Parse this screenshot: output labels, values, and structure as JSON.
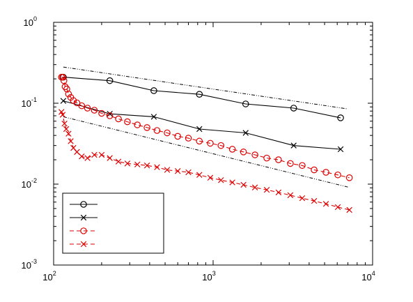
{
  "chart_data": {
    "type": "line",
    "title": "",
    "xlabel": "",
    "ylabel": "",
    "x_scale": "log",
    "y_scale": "log",
    "xlim": [
      100,
      10000
    ],
    "ylim": [
      0.001,
      1
    ],
    "x_ticks": [
      {
        "value": 100,
        "base": "10",
        "exp": "2"
      },
      {
        "value": 1000,
        "base": "10",
        "exp": "3"
      },
      {
        "value": 10000,
        "base": "10",
        "exp": "4"
      }
    ],
    "y_ticks": [
      {
        "value": 0.001,
        "base": "10",
        "exp": "-3"
      },
      {
        "value": 0.01,
        "base": "10",
        "exp": "-2"
      },
      {
        "value": 0.1,
        "base": "10",
        "exp": "-1"
      },
      {
        "value": 1,
        "base": "10",
        "exp": "0"
      }
    ],
    "grid": false,
    "legend_position": "bottom-left",
    "series": [
      {
        "color": "#000000",
        "marker": "circle",
        "line_style": "solid",
        "x": [
          115,
          225,
          425,
          820,
          1600,
          3200,
          6300
        ],
        "y": [
          0.21,
          0.19,
          0.143,
          0.129,
          0.098,
          0.087,
          0.066
        ]
      },
      {
        "color": "#000000",
        "marker": "x",
        "line_style": "solid",
        "x": [
          115,
          225,
          425,
          820,
          1600,
          3200,
          6300
        ],
        "y": [
          0.107,
          0.074,
          0.068,
          0.048,
          0.043,
          0.03,
          0.027
        ]
      },
      {
        "color": "#dd0000",
        "marker": "circle",
        "line_style": "dashed",
        "x": [
          112,
          114,
          116,
          118,
          121,
          124,
          128,
          133,
          140,
          150,
          163,
          180,
          200,
          225,
          255,
          290,
          335,
          385,
          445,
          515,
          600,
          700,
          820,
          960,
          1120,
          1320,
          1550,
          1830,
          2170,
          2570,
          3050,
          3620,
          4300,
          5100,
          6050,
          7150
        ],
        "y": [
          0.21,
          0.21,
          0.19,
          0.16,
          0.15,
          0.13,
          0.118,
          0.108,
          0.101,
          0.093,
          0.087,
          0.082,
          0.075,
          0.07,
          0.064,
          0.059,
          0.054,
          0.05,
          0.046,
          0.043,
          0.039,
          0.037,
          0.034,
          0.032,
          0.03,
          0.027,
          0.025,
          0.023,
          0.021,
          0.02,
          0.018,
          0.017,
          0.015,
          0.014,
          0.013,
          0.012
        ]
      },
      {
        "color": "#dd0000",
        "marker": "x",
        "line_style": "dashed",
        "x": [
          112,
          114,
          117,
          120,
          124,
          128,
          133,
          140,
          150,
          163,
          180,
          200,
          225,
          255,
          290,
          335,
          385,
          445,
          515,
          600,
          700,
          820,
          960,
          1120,
          1320,
          1550,
          1830,
          2170,
          2570,
          3050,
          3620,
          4300,
          5100,
          6050,
          7150
        ],
        "y": [
          0.078,
          0.072,
          0.056,
          0.048,
          0.042,
          0.034,
          0.028,
          0.025,
          0.022,
          0.021,
          0.023,
          0.023,
          0.021,
          0.019,
          0.018,
          0.0175,
          0.017,
          0.0162,
          0.015,
          0.0145,
          0.014,
          0.013,
          0.012,
          0.0112,
          0.0105,
          0.0098,
          0.0091,
          0.0085,
          0.0079,
          0.0073,
          0.0067,
          0.0062,
          0.0057,
          0.0052,
          0.0048
        ]
      }
    ],
    "reference_lines": [
      {
        "color": "#000000",
        "line_style": "dash-dot",
        "x": [
          115,
          7000
        ],
        "y": [
          0.28,
          0.085
        ]
      },
      {
        "color": "#000000",
        "line_style": "dash-dot",
        "x": [
          115,
          7000
        ],
        "y": [
          0.068,
          0.0092
        ]
      }
    ]
  }
}
